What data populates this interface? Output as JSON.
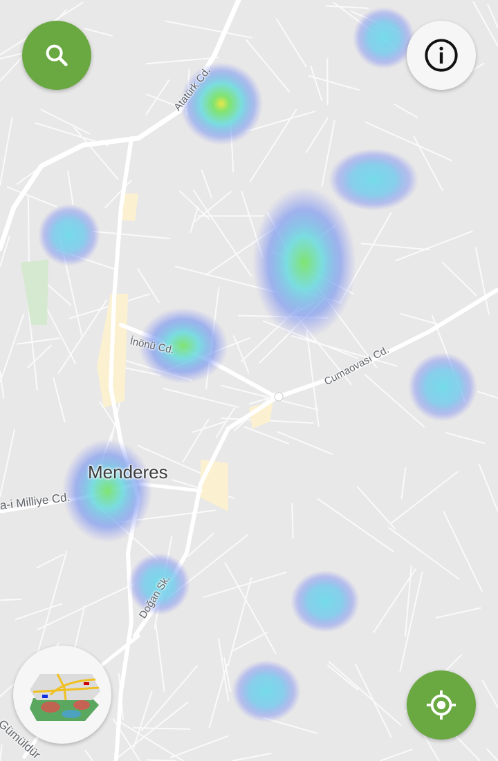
{
  "map": {
    "city_label": "Menderes",
    "street_labels": {
      "ataturk": "Atatürk Cd.",
      "inonu": "İnönü Cd.",
      "cumaovasi": "Cumaovası Cd.",
      "milliye": "a-i Milliye Cd.",
      "dogan": "Doğan Sk.",
      "gumuldur": "Gümüldür"
    },
    "layer": "heatmap"
  },
  "controls": {
    "search": {
      "icon": "search-icon"
    },
    "info": {
      "icon": "info-icon"
    },
    "layers": {
      "icon": "map-layers-icon"
    },
    "locate": {
      "icon": "my-location-icon"
    }
  },
  "colors": {
    "accent": "#6aa842",
    "map_bg": "#e8e8e8",
    "road": "#ffffff"
  }
}
